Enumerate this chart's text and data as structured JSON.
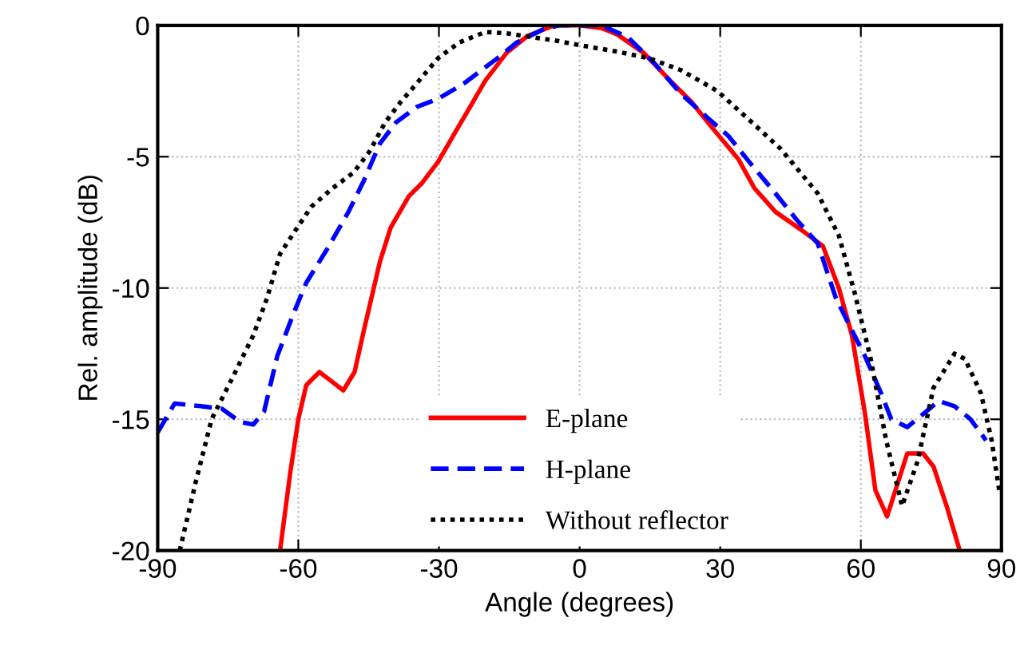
{
  "chart_data": {
    "type": "line",
    "xlabel": "Angle (degrees)",
    "ylabel": "Rel. amplitude (dB)",
    "xlim": [
      -90,
      90
    ],
    "xticks": [
      -90,
      -60,
      -30,
      0,
      30,
      60,
      90
    ],
    "ylim": [
      -20,
      0
    ],
    "yticks": [
      -20,
      -15,
      -10,
      -5,
      0
    ],
    "grid": true,
    "legend": "bottom",
    "marker": "none",
    "series": [
      {
        "name": "E-plane",
        "color": "#ff0000",
        "line_style": "solid",
        "x": [
          -63.9,
          -61.7,
          -60,
          -58.3,
          -55.5,
          -53.3,
          -50.4,
          -48,
          -46,
          -42.6,
          -40.3,
          -36.4,
          -33.6,
          -30.2,
          -26.3,
          -24,
          -20.1,
          -15.6,
          -11.1,
          -5.5,
          0,
          4.7,
          8.1,
          13.7,
          19.3,
          23.8,
          28.3,
          33.9,
          37.3,
          41.8,
          47.4,
          51.9,
          55.3,
          58.1,
          60.9,
          63.1,
          65.6,
          69.9,
          73.3,
          75.5,
          78.3,
          81.1
        ],
        "values": [
          -20,
          -17.0,
          -15.0,
          -13.7,
          -13.2,
          -13.5,
          -13.9,
          -13.2,
          -11.6,
          -9.0,
          -7.7,
          -6.5,
          -6.0,
          -5.2,
          -4.0,
          -3.3,
          -2.1,
          -1.05,
          -0.4,
          0,
          0,
          -0.1,
          -0.35,
          -1.05,
          -2.1,
          -2.9,
          -3.9,
          -5.1,
          -6.2,
          -7.1,
          -7.8,
          -8.4,
          -10.0,
          -11.8,
          -14.8,
          -17.7,
          -18.7,
          -16.3,
          -16.3,
          -16.8,
          -18.3,
          -20
        ]
      },
      {
        "name": "H-plane",
        "color": "#0000ff",
        "line_style": "dashed",
        "x": [
          -90,
          -86.4,
          -80.8,
          -76.3,
          -72.4,
          -69.6,
          -67.3,
          -64.5,
          -61.1,
          -58.3,
          -53.8,
          -49.3,
          -46,
          -42.6,
          -39.2,
          -34.7,
          -30.2,
          -24.6,
          -17.9,
          -13.4,
          -7.8,
          -4.4,
          4.7,
          10.3,
          16,
          21.6,
          27.2,
          31.7,
          36.2,
          41.8,
          46.3,
          50.8,
          54.7,
          57.5,
          60.9,
          64.3,
          66.5,
          69.9,
          73.3,
          76.6,
          80,
          83.4,
          86.7
        ],
        "values": [
          -15.5,
          -14.4,
          -14.5,
          -14.6,
          -15.1,
          -15.2,
          -14.7,
          -12.6,
          -11.0,
          -9.8,
          -8.5,
          -7.1,
          -5.9,
          -4.5,
          -3.7,
          -3.1,
          -2.8,
          -2.2,
          -1.3,
          -0.65,
          -0.15,
          0,
          0,
          -0.45,
          -1.45,
          -2.6,
          -3.5,
          -4.2,
          -5.2,
          -6.4,
          -7.4,
          -8.3,
          -10.4,
          -11.4,
          -12.6,
          -14.0,
          -15.0,
          -15.3,
          -14.8,
          -14.3,
          -14.5,
          -15.0,
          -15.8
        ]
      },
      {
        "name": "Without reflector",
        "color": "#000000",
        "line_style": "dotted",
        "x": [
          -85.3,
          -81.9,
          -78.5,
          -74,
          -69.6,
          -66.7,
          -63.9,
          -60.6,
          -57.2,
          -52.7,
          -48.2,
          -44.8,
          -41.5,
          -38.1,
          -34.7,
          -30.2,
          -25.7,
          -20.1,
          -15.6,
          -10,
          -4.4,
          0,
          8.1,
          14.8,
          21.6,
          29.4,
          36.2,
          42.9,
          50.8,
          55.3,
          58.7,
          62,
          65.4,
          68.8,
          72.1,
          75.5,
          80,
          82.2,
          85.6,
          87.9,
          89.6
        ],
        "values": [
          -20,
          -17.4,
          -15.0,
          -13.4,
          -11.8,
          -10.4,
          -8.7,
          -7.8,
          -6.9,
          -6.2,
          -5.6,
          -4.8,
          -3.7,
          -2.9,
          -2.2,
          -1.25,
          -0.65,
          -0.25,
          -0.3,
          -0.45,
          -0.6,
          -0.75,
          -1.0,
          -1.25,
          -1.7,
          -2.5,
          -3.6,
          -4.7,
          -6.4,
          -8.0,
          -10.2,
          -12.6,
          -15.8,
          -18.3,
          -16.6,
          -13.8,
          -12.5,
          -12.7,
          -14.0,
          -15.8,
          -17.8
        ]
      }
    ]
  }
}
